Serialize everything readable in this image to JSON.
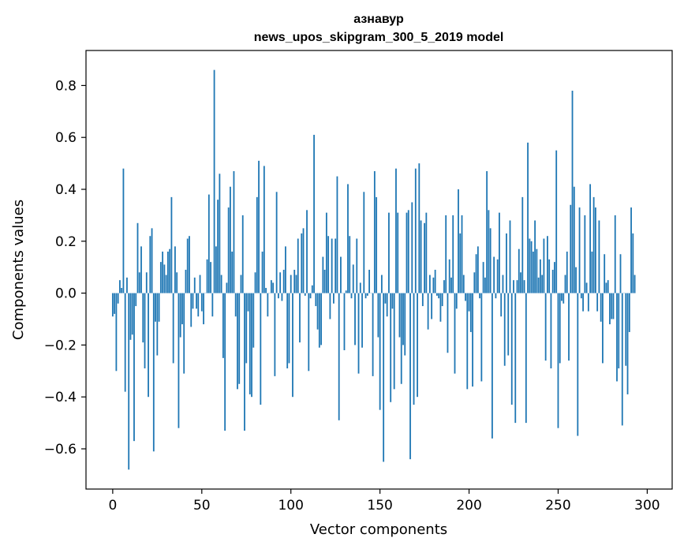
{
  "chart_data": {
    "type": "bar",
    "title_line1": "азнавур",
    "title_line2": "news_upos_skipgram_300_5_2019 model",
    "xlabel": "Vector components",
    "ylabel": "Components values",
    "xlim": [
      -15,
      314
    ],
    "ylim": [
      -0.755,
      0.935
    ],
    "xticks": [
      0,
      50,
      100,
      150,
      200,
      250,
      300
    ],
    "xtick_labels": [
      "0",
      "50",
      "100",
      "150",
      "200",
      "250",
      "300"
    ],
    "yticks": [
      0.8,
      0.6,
      0.4,
      0.2,
      0.0,
      -0.2,
      -0.4,
      -0.6
    ],
    "ytick_labels": [
      "0.8",
      "0.6",
      "0.4",
      "0.2",
      "0.0",
      "−0.2",
      "−0.4",
      "−0.6"
    ],
    "bar_color": "#1f77b4",
    "values": [
      -0.09,
      -0.08,
      -0.3,
      -0.04,
      0.05,
      0.02,
      0.48,
      -0.38,
      0.06,
      -0.68,
      -0.18,
      -0.16,
      -0.57,
      -0.05,
      0.27,
      0.08,
      0.18,
      -0.19,
      -0.29,
      0.08,
      -0.4,
      0.22,
      0.25,
      -0.61,
      -0.11,
      -0.24,
      -0.11,
      0.12,
      0.16,
      0.11,
      0.07,
      0.16,
      0.17,
      0.37,
      -0.27,
      0.18,
      0.08,
      -0.52,
      -0.17,
      -0.12,
      -0.31,
      0.09,
      0.21,
      0.22,
      -0.13,
      -0.06,
      0.06,
      -0.06,
      -0.09,
      0.07,
      -0.07,
      -0.12,
      0.0,
      0.13,
      0.38,
      0.12,
      -0.09,
      0.86,
      0.18,
      0.36,
      0.46,
      0.07,
      -0.25,
      -0.53,
      0.04,
      0.33,
      0.41,
      0.16,
      0.47,
      -0.09,
      -0.37,
      -0.35,
      0.07,
      0.3,
      -0.53,
      -0.27,
      -0.07,
      -0.39,
      -0.4,
      -0.21,
      0.08,
      0.37,
      0.51,
      -0.43,
      0.16,
      0.49,
      0.02,
      -0.09,
      0.0,
      0.05,
      0.04,
      -0.32,
      0.39,
      -0.02,
      0.08,
      -0.03,
      0.09,
      0.18,
      -0.29,
      -0.27,
      0.07,
      -0.4,
      0.09,
      0.07,
      0.21,
      -0.19,
      0.23,
      0.25,
      -0.01,
      0.32,
      -0.3,
      -0.02,
      0.03,
      0.61,
      -0.05,
      -0.14,
      -0.21,
      -0.2,
      0.14,
      0.09,
      0.31,
      0.22,
      -0.1,
      0.21,
      -0.04,
      0.21,
      0.45,
      -0.49,
      0.14,
      0.0,
      -0.22,
      0.01,
      0.42,
      0.22,
      -0.02,
      0.11,
      -0.2,
      0.21,
      -0.31,
      0.04,
      -0.21,
      0.39,
      -0.02,
      -0.01,
      0.09,
      0.0,
      -0.32,
      0.47,
      0.37,
      -0.17,
      -0.45,
      0.07,
      -0.65,
      -0.04,
      -0.09,
      0.31,
      -0.42,
      -0.06,
      -0.37,
      0.48,
      0.31,
      -0.17,
      -0.35,
      -0.2,
      -0.24,
      0.31,
      0.32,
      -0.64,
      0.35,
      -0.43,
      0.48,
      -0.4,
      0.5,
      0.28,
      -0.05,
      0.27,
      0.31,
      -0.14,
      0.07,
      -0.1,
      0.06,
      0.09,
      -0.01,
      -0.02,
      -0.11,
      -0.05,
      0.05,
      0.3,
      -0.23,
      0.13,
      0.06,
      0.3,
      -0.31,
      -0.06,
      0.4,
      0.23,
      0.3,
      0.07,
      -0.03,
      -0.37,
      -0.07,
      -0.15,
      -0.36,
      0.08,
      0.15,
      0.18,
      -0.02,
      -0.34,
      0.12,
      0.06,
      0.47,
      0.32,
      0.25,
      -0.56,
      0.14,
      -0.02,
      0.13,
      0.31,
      -0.09,
      0.07,
      -0.28,
      0.23,
      -0.24,
      0.28,
      -0.43,
      0.05,
      -0.5,
      0.05,
      0.17,
      0.08,
      0.37,
      0.05,
      -0.5,
      0.58,
      0.21,
      0.2,
      0.16,
      0.28,
      0.17,
      0.06,
      0.13,
      0.07,
      0.21,
      -0.26,
      0.22,
      0.13,
      -0.29,
      0.09,
      0.12,
      0.55,
      -0.52,
      -0.27,
      -0.03,
      -0.04,
      0.07,
      0.16,
      -0.26,
      0.34,
      0.78,
      0.41,
      0.1,
      -0.55,
      0.33,
      -0.02,
      -0.07,
      0.3,
      0.04,
      -0.07,
      0.42,
      0.16,
      0.37,
      0.33,
      -0.07,
      0.28,
      -0.11,
      -0.27,
      0.15,
      0.04,
      0.05,
      -0.12,
      -0.1,
      -0.1,
      0.3,
      -0.34,
      -0.29,
      0.15,
      -0.51,
      0.0,
      -0.28,
      -0.39,
      -0.15,
      0.33,
      0.23,
      0.07
    ]
  }
}
